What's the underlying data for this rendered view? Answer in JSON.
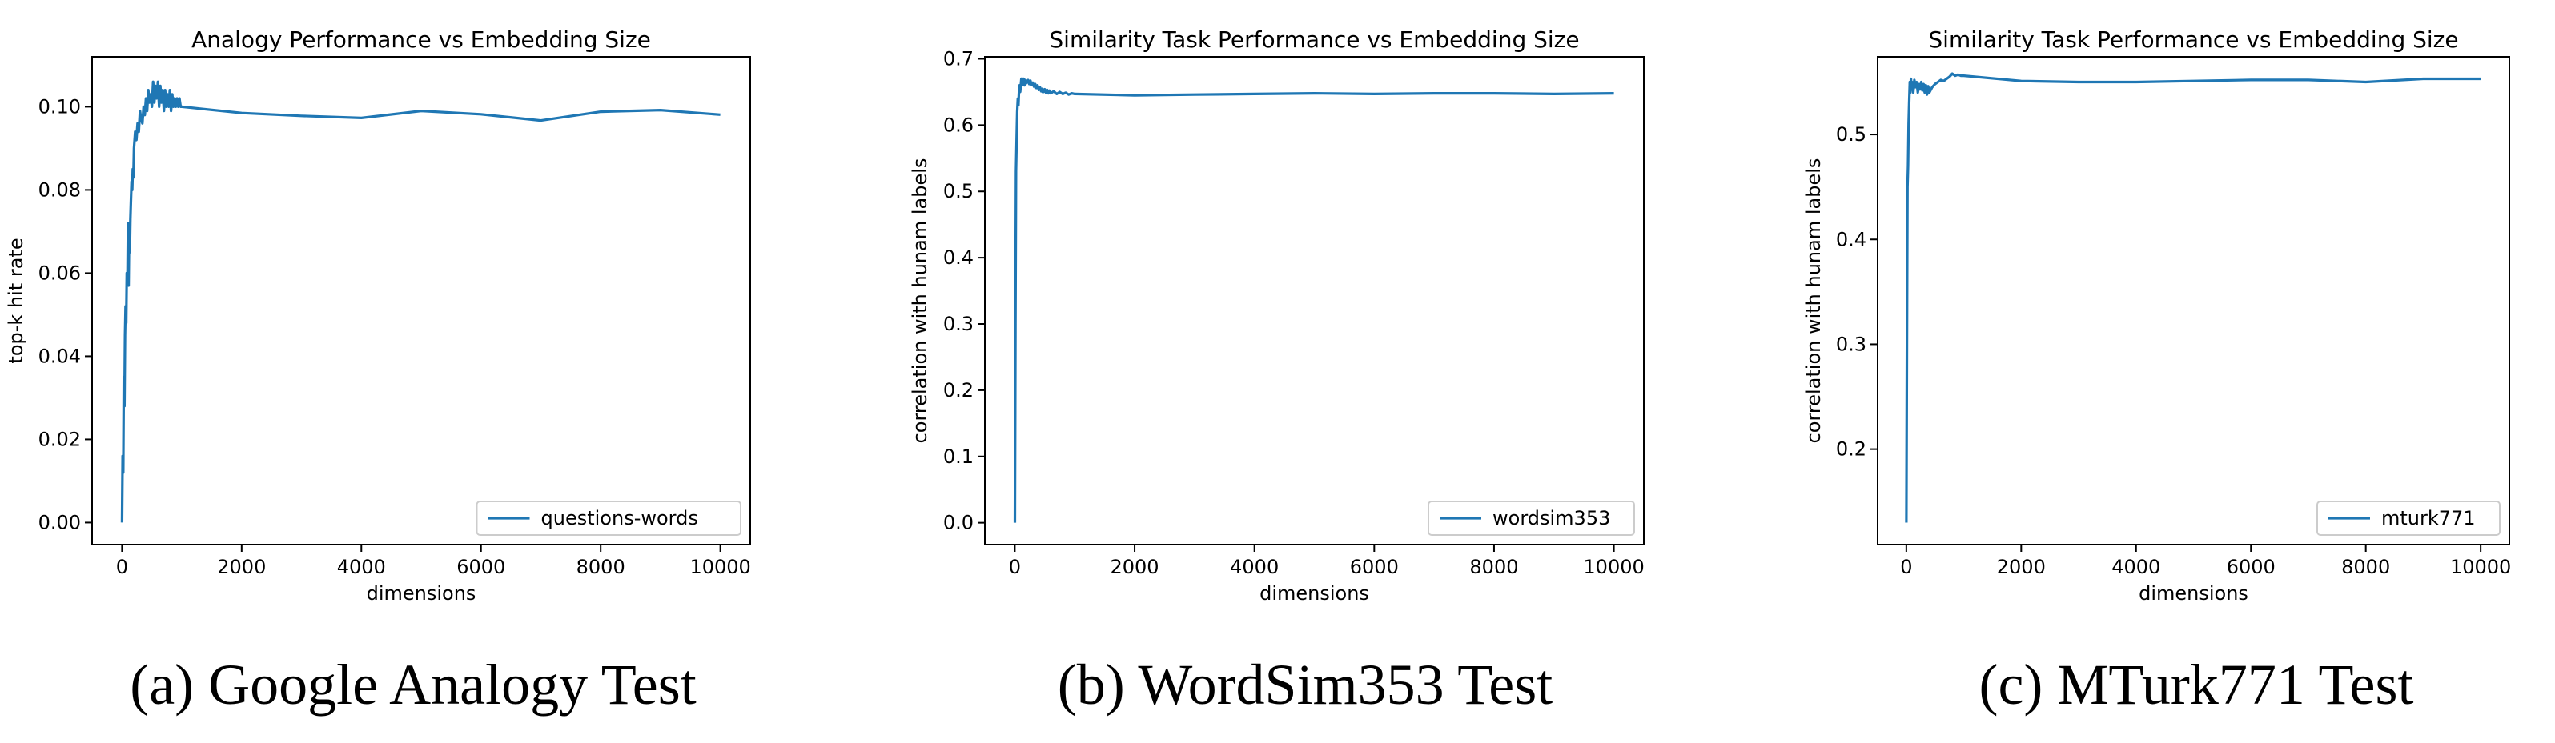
{
  "chart_data": [
    {
      "type": "line",
      "title": "Analogy Performance vs Embedding Size",
      "xlabel": "dimensions",
      "ylabel": "top-k hit rate",
      "xlim": [
        -500,
        10500
      ],
      "ylim": [
        -0.0053,
        0.112
      ],
      "xticks": [
        0,
        2000,
        4000,
        6000,
        8000,
        10000
      ],
      "yticks": [
        0.0,
        0.02,
        0.04,
        0.06,
        0.08,
        0.1
      ],
      "ytick_labels": [
        "0.00",
        "0.02",
        "0.04",
        "0.06",
        "0.08",
        "0.10"
      ],
      "legend_position": "lower-right",
      "color": "#1f77b4",
      "caption": "(a) Google Analogy Test",
      "series": [
        {
          "name": "questions-words",
          "x": [
            1,
            10,
            20,
            30,
            40,
            50,
            60,
            70,
            80,
            90,
            100,
            110,
            120,
            130,
            140,
            150,
            160,
            170,
            180,
            190,
            200,
            220,
            240,
            260,
            280,
            300,
            320,
            340,
            360,
            380,
            400,
            420,
            440,
            460,
            480,
            500,
            520,
            540,
            560,
            580,
            600,
            620,
            640,
            660,
            680,
            700,
            720,
            740,
            760,
            780,
            800,
            820,
            840,
            860,
            880,
            900,
            920,
            940,
            960,
            980,
            1000,
            2000,
            3000,
            4000,
            5000,
            6000,
            7000,
            8000,
            9000,
            10000
          ],
          "y": [
            0.0,
            0.016,
            0.012,
            0.035,
            0.028,
            0.045,
            0.052,
            0.048,
            0.06,
            0.057,
            0.072,
            0.057,
            0.07,
            0.065,
            0.073,
            0.078,
            0.082,
            0.08,
            0.085,
            0.083,
            0.09,
            0.094,
            0.092,
            0.096,
            0.094,
            0.099,
            0.097,
            0.096,
            0.1,
            0.098,
            0.102,
            0.099,
            0.104,
            0.101,
            0.103,
            0.1,
            0.106,
            0.101,
            0.105,
            0.102,
            0.106,
            0.1,
            0.105,
            0.101,
            0.104,
            0.099,
            0.104,
            0.1,
            0.103,
            0.1,
            0.104,
            0.099,
            0.103,
            0.1,
            0.102,
            0.1,
            0.102,
            0.1,
            0.102,
            0.1,
            0.1,
            0.0985,
            0.0978,
            0.0973,
            0.099,
            0.0982,
            0.0967,
            0.0988,
            0.0992,
            0.0981
          ]
        }
      ]
    },
    {
      "type": "line",
      "title": "Similarity Task Performance vs Embedding Size",
      "xlabel": "dimensions",
      "ylabel": "correlation with hunam labels",
      "xlim": [
        -500,
        10500
      ],
      "ylim": [
        -0.033,
        0.703
      ],
      "xticks": [
        0,
        2000,
        4000,
        6000,
        8000,
        10000
      ],
      "yticks": [
        0.0,
        0.1,
        0.2,
        0.3,
        0.4,
        0.5,
        0.6,
        0.7
      ],
      "ytick_labels": [
        "0.0",
        "0.1",
        "0.2",
        "0.3",
        "0.4",
        "0.5",
        "0.6",
        "0.7"
      ],
      "legend_position": "lower-right",
      "color": "#1f77b4",
      "caption": "(b) WordSim353 Test",
      "series": [
        {
          "name": "wordsim353",
          "x": [
            1,
            10,
            20,
            30,
            40,
            50,
            60,
            70,
            80,
            90,
            100,
            110,
            120,
            130,
            140,
            150,
            160,
            170,
            180,
            190,
            200,
            220,
            240,
            260,
            280,
            300,
            320,
            340,
            360,
            380,
            400,
            420,
            440,
            460,
            480,
            500,
            520,
            540,
            560,
            580,
            600,
            650,
            700,
            750,
            800,
            850,
            900,
            950,
            1000,
            2000,
            3000,
            4000,
            5000,
            6000,
            7000,
            8000,
            9000,
            10000
          ],
          "y": [
            0.0,
            0.3,
            0.53,
            0.58,
            0.62,
            0.64,
            0.63,
            0.65,
            0.66,
            0.65,
            0.66,
            0.67,
            0.66,
            0.67,
            0.665,
            0.67,
            0.66,
            0.668,
            0.662,
            0.667,
            0.664,
            0.668,
            0.662,
            0.667,
            0.661,
            0.664,
            0.658,
            0.662,
            0.656,
            0.66,
            0.653,
            0.657,
            0.651,
            0.655,
            0.65,
            0.654,
            0.649,
            0.653,
            0.648,
            0.652,
            0.648,
            0.651,
            0.647,
            0.65,
            0.647,
            0.649,
            0.646,
            0.648,
            0.647,
            0.645,
            0.646,
            0.647,
            0.648,
            0.647,
            0.648,
            0.648,
            0.647,
            0.648
          ]
        }
      ]
    },
    {
      "type": "line",
      "title": "Similarity Task Performance vs Embedding Size",
      "xlabel": "dimensions",
      "ylabel": "correlation with hunam labels",
      "xlim": [
        -500,
        10500
      ],
      "ylim": [
        0.109,
        0.574
      ],
      "xticks": [
        0,
        2000,
        4000,
        6000,
        8000,
        10000
      ],
      "yticks": [
        0.2,
        0.3,
        0.4,
        0.5
      ],
      "ytick_labels": [
        "0.2",
        "0.3",
        "0.4",
        "0.5"
      ],
      "legend_position": "lower-right",
      "color": "#1f77b4",
      "caption": "(c) MTurk771 Test",
      "series": [
        {
          "name": "mturk771",
          "x": [
            1,
            10,
            20,
            30,
            40,
            50,
            60,
            70,
            80,
            90,
            100,
            120,
            140,
            160,
            180,
            200,
            220,
            240,
            260,
            280,
            300,
            320,
            340,
            360,
            380,
            400,
            450,
            500,
            550,
            600,
            650,
            700,
            750,
            800,
            850,
            900,
            950,
            1000,
            2000,
            3000,
            4000,
            5000,
            6000,
            7000,
            8000,
            9000,
            10000
          ],
          "y": [
            0.13,
            0.3,
            0.45,
            0.47,
            0.51,
            0.53,
            0.55,
            0.54,
            0.553,
            0.545,
            0.55,
            0.54,
            0.552,
            0.545,
            0.55,
            0.54,
            0.548,
            0.543,
            0.55,
            0.542,
            0.548,
            0.54,
            0.547,
            0.538,
            0.546,
            0.54,
            0.545,
            0.548,
            0.55,
            0.552,
            0.551,
            0.553,
            0.555,
            0.558,
            0.556,
            0.557,
            0.556,
            0.556,
            0.551,
            0.55,
            0.55,
            0.551,
            0.552,
            0.552,
            0.55,
            0.553,
            0.553
          ]
        }
      ]
    }
  ]
}
